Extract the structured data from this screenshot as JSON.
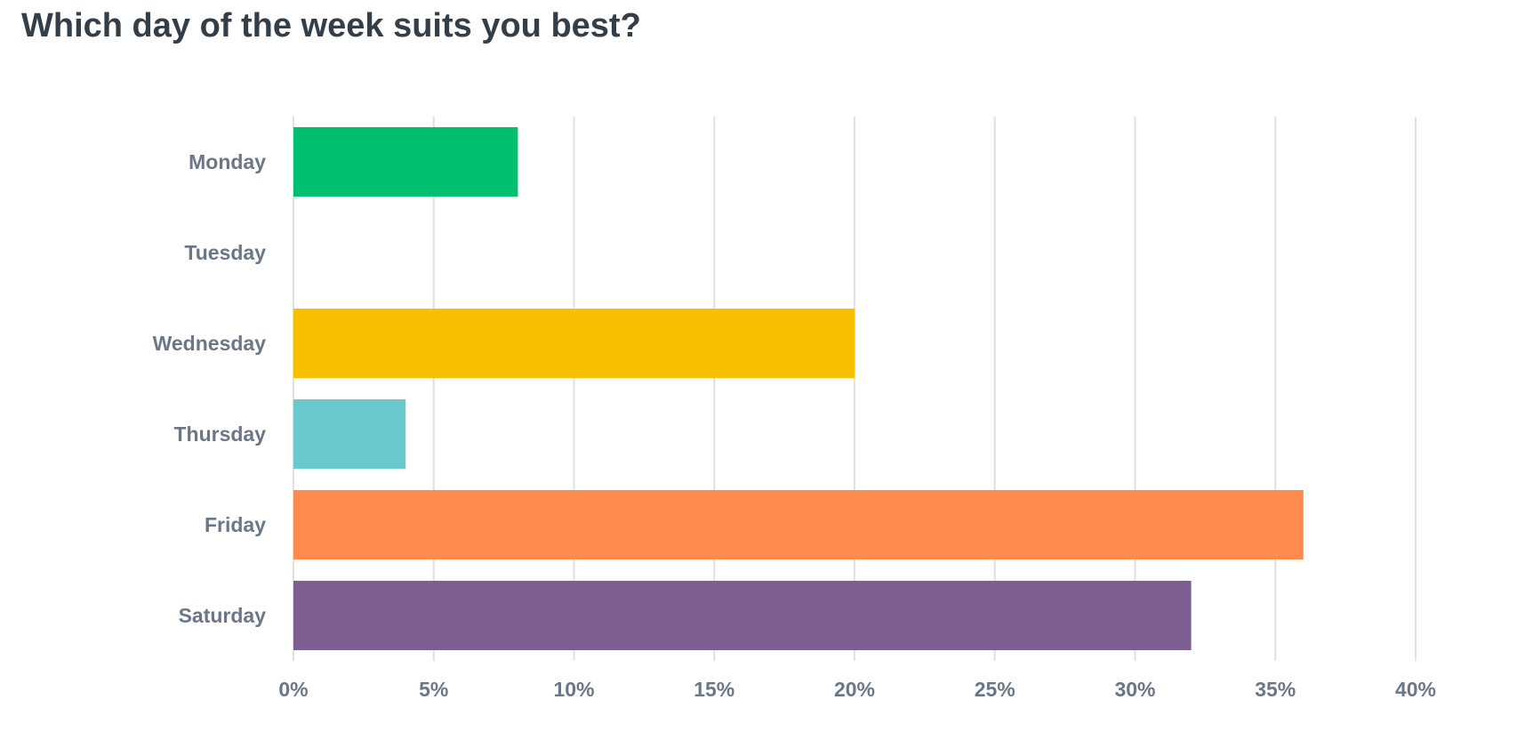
{
  "chart_data": {
    "type": "bar",
    "orientation": "horizontal",
    "title": "Which day of the week suits you best?",
    "categories": [
      "Monday",
      "Tuesday",
      "Wednesday",
      "Thursday",
      "Friday",
      "Saturday"
    ],
    "values": [
      8,
      0,
      20,
      4,
      36,
      32
    ],
    "colors": [
      "#00bf6f",
      "#2dccd3",
      "#f7c000",
      "#6bc8cd",
      "#ff8b4f",
      "#7d5e90"
    ],
    "xlim": [
      0,
      40
    ],
    "xticks": [
      0,
      5,
      10,
      15,
      20,
      25,
      30,
      35,
      40
    ],
    "tick_suffix": "%",
    "grid": true
  }
}
